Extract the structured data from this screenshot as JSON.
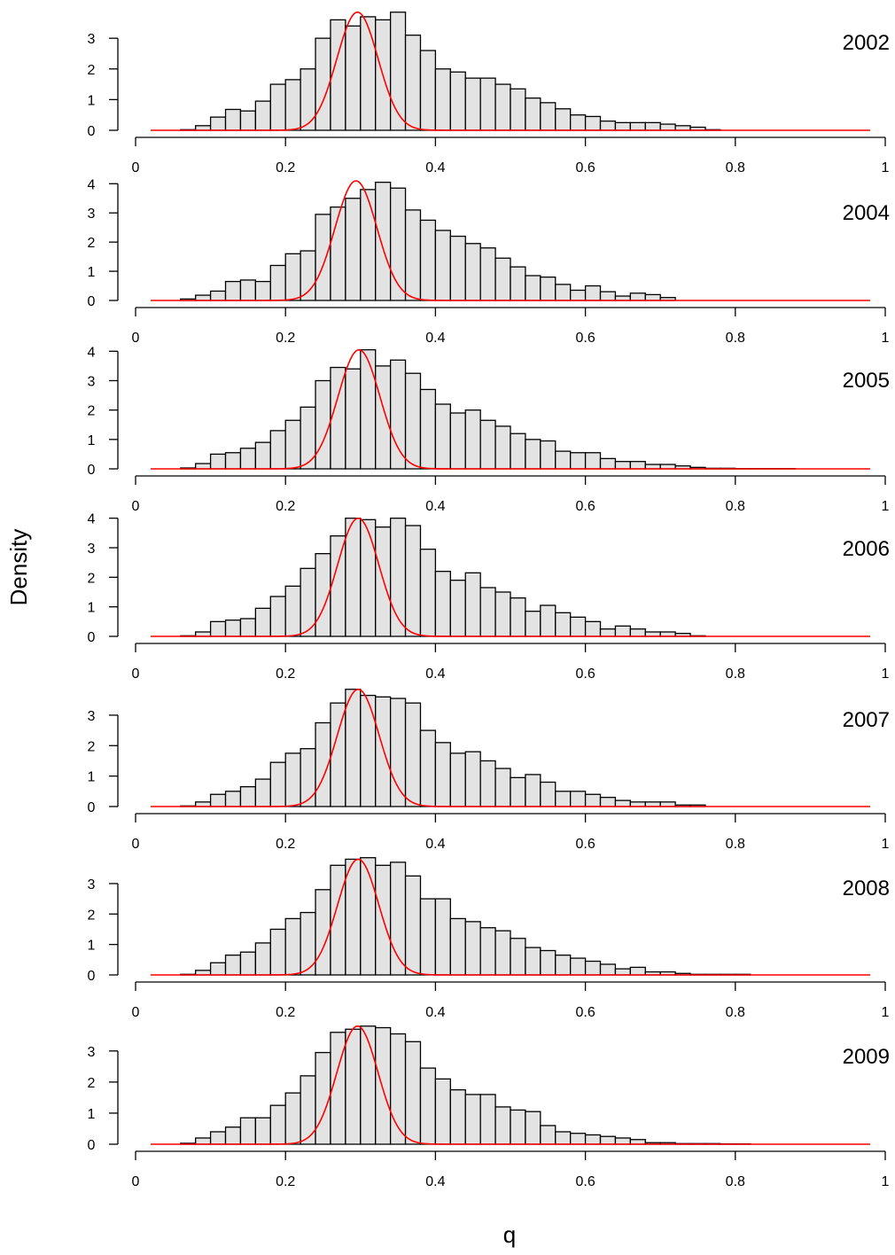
{
  "figure": {
    "ylabel": "Density",
    "xlabel": "q"
  },
  "chart_data": [
    {
      "type": "bar",
      "year": "2002",
      "bin_start": 0.02,
      "bin_width": 0.02,
      "values": [
        0,
        0,
        0.02,
        0.15,
        0.43,
        0.68,
        0.63,
        0.95,
        1.5,
        1.65,
        2.0,
        3.0,
        3.6,
        3.4,
        3.7,
        3.6,
        3.85,
        3.1,
        2.6,
        2.0,
        1.9,
        1.7,
        1.7,
        1.5,
        1.35,
        1.05,
        0.9,
        0.7,
        0.5,
        0.45,
        0.3,
        0.25,
        0.25,
        0.25,
        0.2,
        0.15,
        0.1,
        0.02,
        0,
        0,
        0,
        0,
        0,
        0,
        0,
        0,
        0,
        0,
        0
      ],
      "yticks": [
        0,
        1,
        2,
        3
      ],
      "ylim": [
        0,
        3.9
      ],
      "xlim": [
        0,
        1
      ],
      "xticks": [
        "0",
        "0.2",
        "0.4",
        "0.6",
        "0.8",
        "1"
      ],
      "density_curve": {
        "mean": 0.296,
        "sd": 0.0275,
        "peak": 3.85,
        "from": 0.02,
        "to": 0.98
      }
    },
    {
      "type": "bar",
      "year": "2004",
      "bin_start": 0.02,
      "bin_width": 0.02,
      "values": [
        0,
        0,
        0.05,
        0.18,
        0.32,
        0.65,
        0.7,
        0.65,
        1.2,
        1.6,
        1.7,
        2.95,
        3.2,
        3.5,
        3.8,
        4.05,
        3.85,
        3.1,
        2.75,
        2.4,
        2.2,
        1.95,
        1.8,
        1.45,
        1.15,
        0.85,
        0.8,
        0.55,
        0.35,
        0.5,
        0.3,
        0.15,
        0.25,
        0.2,
        0.1,
        0,
        0,
        0,
        0,
        0,
        0,
        0,
        0,
        0,
        0,
        0,
        0,
        0,
        0
      ],
      "yticks": [
        0,
        1,
        2,
        3,
        4
      ],
      "ylim": [
        0,
        4.1
      ],
      "xlim": [
        0,
        1
      ],
      "xticks": [
        "0",
        "0.2",
        "0.4",
        "0.6",
        "0.8",
        "1"
      ],
      "density_curve": {
        "mean": 0.294,
        "sd": 0.028,
        "peak": 4.1,
        "from": 0.02,
        "to": 0.98
      }
    },
    {
      "type": "bar",
      "year": "2005",
      "bin_start": 0.02,
      "bin_width": 0.02,
      "values": [
        0,
        0,
        0.03,
        0.18,
        0.5,
        0.55,
        0.7,
        0.9,
        1.3,
        1.65,
        2.1,
        3.0,
        3.45,
        3.4,
        4.05,
        3.5,
        3.7,
        3.25,
        2.7,
        2.2,
        1.9,
        2.0,
        1.65,
        1.45,
        1.2,
        1.0,
        0.95,
        0.6,
        0.55,
        0.55,
        0.35,
        0.25,
        0.25,
        0.15,
        0.15,
        0.1,
        0.05,
        0.02,
        0.02,
        0.01,
        0.01,
        0.01,
        0.01,
        0,
        0,
        0,
        0,
        0,
        0
      ],
      "yticks": [
        0,
        1,
        2,
        3,
        4
      ],
      "ylim": [
        0,
        4.1
      ],
      "xlim": [
        0,
        1
      ],
      "xticks": [
        "0",
        "0.2",
        "0.4",
        "0.6",
        "0.8",
        "1"
      ],
      "density_curve": {
        "mean": 0.298,
        "sd": 0.028,
        "peak": 4.05,
        "from": 0.02,
        "to": 0.98
      }
    },
    {
      "type": "bar",
      "year": "2006",
      "bin_start": 0.02,
      "bin_width": 0.02,
      "values": [
        0,
        0,
        0.02,
        0.15,
        0.5,
        0.55,
        0.6,
        0.95,
        1.35,
        1.7,
        2.3,
        2.8,
        3.4,
        4.0,
        3.95,
        3.7,
        4.0,
        3.75,
        2.95,
        2.2,
        1.9,
        2.15,
        1.65,
        1.5,
        1.3,
        0.85,
        1.05,
        0.8,
        0.65,
        0.5,
        0.25,
        0.35,
        0.25,
        0.15,
        0.15,
        0.1,
        0.02,
        0,
        0,
        0,
        0,
        0,
        0,
        0,
        0,
        0,
        0,
        0,
        0
      ],
      "yticks": [
        0,
        1,
        2,
        3,
        4
      ],
      "ylim": [
        0,
        4.05
      ],
      "xlim": [
        0,
        1
      ],
      "xticks": [
        "0",
        "0.2",
        "0.4",
        "0.6",
        "0.8",
        "1"
      ],
      "density_curve": {
        "mean": 0.297,
        "sd": 0.0275,
        "peak": 4.0,
        "from": 0.02,
        "to": 0.98
      }
    },
    {
      "type": "bar",
      "year": "2007",
      "bin_start": 0.02,
      "bin_width": 0.02,
      "values": [
        0,
        0,
        0.02,
        0.15,
        0.4,
        0.5,
        0.65,
        0.9,
        1.45,
        1.75,
        1.9,
        2.75,
        3.4,
        3.85,
        3.65,
        3.6,
        3.55,
        3.4,
        2.5,
        2.1,
        1.75,
        1.8,
        1.5,
        1.25,
        0.95,
        1.05,
        0.8,
        0.5,
        0.5,
        0.4,
        0.3,
        0.2,
        0.15,
        0.15,
        0.15,
        0.05,
        0.05,
        0,
        0,
        0,
        0,
        0,
        0,
        0,
        0,
        0,
        0,
        0,
        0
      ],
      "yticks": [
        0,
        1,
        2,
        3
      ],
      "ylim": [
        0,
        3.9
      ],
      "xlim": [
        0,
        1
      ],
      "xticks": [
        "0",
        "0.2",
        "0.4",
        "0.6",
        "0.8",
        "1"
      ],
      "density_curve": {
        "mean": 0.297,
        "sd": 0.028,
        "peak": 3.85,
        "from": 0.02,
        "to": 0.98
      }
    },
    {
      "type": "bar",
      "year": "2008",
      "bin_start": 0.02,
      "bin_width": 0.02,
      "values": [
        0,
        0,
        0.02,
        0.15,
        0.4,
        0.65,
        0.75,
        1.05,
        1.5,
        1.85,
        2.05,
        2.8,
        3.6,
        3.8,
        3.85,
        3.6,
        3.7,
        3.25,
        2.5,
        2.5,
        1.85,
        1.75,
        1.55,
        1.45,
        1.2,
        0.9,
        0.8,
        0.65,
        0.55,
        0.45,
        0.35,
        0.2,
        0.25,
        0.1,
        0.1,
        0.05,
        0.02,
        0.02,
        0.02,
        0.02,
        0,
        0,
        0,
        0,
        0,
        0,
        0,
        0,
        0
      ],
      "yticks": [
        0,
        1,
        2,
        3
      ],
      "ylim": [
        0,
        3.9
      ],
      "xlim": [
        0,
        1
      ],
      "xticks": [
        "0",
        "0.2",
        "0.4",
        "0.6",
        "0.8",
        "1"
      ],
      "density_curve": {
        "mean": 0.297,
        "sd": 0.0275,
        "peak": 3.8,
        "from": 0.02,
        "to": 0.98
      }
    },
    {
      "type": "bar",
      "year": "2009",
      "bin_start": 0.02,
      "bin_width": 0.02,
      "values": [
        0,
        0,
        0.03,
        0.2,
        0.4,
        0.55,
        0.85,
        0.85,
        1.25,
        1.65,
        2.2,
        2.95,
        3.6,
        3.7,
        3.8,
        3.75,
        3.55,
        3.3,
        2.45,
        2.1,
        1.75,
        1.6,
        1.6,
        1.2,
        1.1,
        1.05,
        0.6,
        0.4,
        0.35,
        0.3,
        0.25,
        0.2,
        0.15,
        0.05,
        0.05,
        0.02,
        0.02,
        0.02,
        0.01,
        0.01,
        0,
        0,
        0,
        0,
        0,
        0,
        0,
        0,
        0
      ],
      "yticks": [
        0,
        1,
        2,
        3
      ],
      "ylim": [
        0,
        3.85
      ],
      "xlim": [
        0,
        1
      ],
      "xticks": [
        "0",
        "0.2",
        "0.4",
        "0.6",
        "0.8",
        "1"
      ],
      "density_curve": {
        "mean": 0.296,
        "sd": 0.0275,
        "peak": 3.8,
        "from": 0.02,
        "to": 0.98
      }
    }
  ],
  "colors": {
    "bar_fill": "#e3e3e3",
    "bar_stroke": "#000000",
    "curve": "#ff0000",
    "axis": "#000000"
  }
}
